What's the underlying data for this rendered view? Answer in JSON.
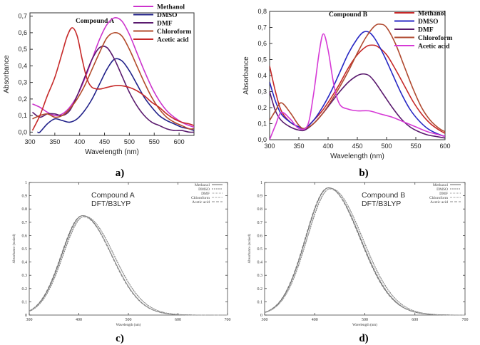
{
  "panels": {
    "a": {
      "label": "a)"
    },
    "b": {
      "label": "b)"
    },
    "c": {
      "label": "c)"
    },
    "d": {
      "label": "d)"
    }
  },
  "chart_data": [
    {
      "id": "a",
      "type": "line",
      "title": "Compound A",
      "xlabel": "Wavelength (nm)",
      "ylabel": "Absorbance",
      "xlim": [
        300,
        630
      ],
      "ylim": [
        -0.02,
        0.72
      ],
      "xticks": [
        300,
        350,
        400,
        450,
        500,
        550,
        600
      ],
      "yticks": [
        0.0,
        0.1,
        0.2,
        0.3,
        0.4,
        0.5,
        0.6,
        0.7
      ],
      "xtick_labels": [
        "300",
        "350",
        "400",
        "450",
        "500",
        "550",
        "600"
      ],
      "ytick_labels": [
        "0,0",
        "0,1",
        "0,2",
        "0,3",
        "0,4",
        "0,5",
        "0,6",
        "0,7"
      ],
      "legend_position": "top-right",
      "colors": {
        "Methanol": "#cc33cc",
        "DMSO": "#22228a",
        "DMF": "#5a1a6e",
        "Chloroform": "#b24a2a",
        "Acetic acid": "#c62828"
      },
      "series": [
        {
          "name": "Methanol",
          "x": [
            305,
            320,
            335,
            350,
            365,
            380,
            395,
            410,
            425,
            440,
            455,
            470,
            485,
            500,
            515,
            530,
            545,
            560,
            575,
            590,
            605,
            620,
            630
          ],
          "y": [
            0.17,
            0.15,
            0.12,
            0.1,
            0.11,
            0.15,
            0.22,
            0.32,
            0.44,
            0.56,
            0.65,
            0.69,
            0.67,
            0.59,
            0.48,
            0.37,
            0.27,
            0.19,
            0.13,
            0.09,
            0.06,
            0.04,
            0.03
          ]
        },
        {
          "name": "DMSO",
          "x": [
            315,
            320,
            335,
            350,
            365,
            380,
            395,
            410,
            425,
            440,
            455,
            470,
            485,
            500,
            515,
            530,
            545,
            560,
            575,
            590,
            605,
            620,
            630
          ],
          "y": [
            0.0,
            0.0,
            0.05,
            0.08,
            0.07,
            0.06,
            0.08,
            0.13,
            0.2,
            0.29,
            0.38,
            0.44,
            0.43,
            0.37,
            0.29,
            0.21,
            0.15,
            0.1,
            0.07,
            0.05,
            0.03,
            0.02,
            0.01
          ]
        },
        {
          "name": "DMF",
          "x": [
            305,
            320,
            335,
            350,
            365,
            380,
            395,
            410,
            425,
            440,
            455,
            470,
            485,
            500,
            515,
            530,
            545,
            560,
            575,
            590,
            605,
            620,
            630
          ],
          "y": [
            0.12,
            0.09,
            0.11,
            0.11,
            0.1,
            0.13,
            0.22,
            0.33,
            0.44,
            0.51,
            0.51,
            0.44,
            0.34,
            0.24,
            0.16,
            0.1,
            0.06,
            0.04,
            0.02,
            0.01,
            0.01,
            0.0,
            0.0
          ]
        },
        {
          "name": "Chloroform",
          "x": [
            305,
            320,
            335,
            350,
            365,
            380,
            395,
            410,
            425,
            440,
            455,
            470,
            485,
            500,
            515,
            530,
            545,
            560,
            575,
            590,
            605,
            620,
            630
          ],
          "y": [
            0.08,
            0.1,
            0.11,
            0.09,
            0.1,
            0.14,
            0.2,
            0.28,
            0.38,
            0.48,
            0.57,
            0.6,
            0.58,
            0.5,
            0.4,
            0.3,
            0.21,
            0.14,
            0.09,
            0.06,
            0.04,
            0.02,
            0.02
          ]
        },
        {
          "name": "Acetic acid",
          "x": [
            305,
            320,
            335,
            350,
            365,
            375,
            385,
            395,
            405,
            415,
            425,
            440,
            455,
            470,
            485,
            500,
            515,
            530,
            545,
            560,
            575,
            590,
            605,
            620,
            630
          ],
          "y": [
            0.01,
            0.1,
            0.22,
            0.33,
            0.48,
            0.58,
            0.63,
            0.58,
            0.44,
            0.32,
            0.27,
            0.26,
            0.27,
            0.28,
            0.28,
            0.27,
            0.25,
            0.22,
            0.18,
            0.15,
            0.11,
            0.08,
            0.06,
            0.05,
            0.04
          ]
        }
      ]
    },
    {
      "id": "b",
      "type": "line",
      "title": "Compound B",
      "xlabel": "Wavelength (nm)",
      "ylabel": "Absorbance",
      "xlim": [
        300,
        600
      ],
      "ylim": [
        0.0,
        0.8
      ],
      "xticks": [
        300,
        350,
        400,
        450,
        500,
        550,
        600
      ],
      "yticks": [
        0.0,
        0.1,
        0.2,
        0.3,
        0.4,
        0.5,
        0.6,
        0.7,
        0.8
      ],
      "xtick_labels": [
        "300",
        "350",
        "400",
        "450",
        "500",
        "550",
        "600"
      ],
      "ytick_labels": [
        "0,0",
        "0,1",
        "0,2",
        "0,3",
        "0,4",
        "0,5",
        "0,6",
        "0,7",
        "0,8"
      ],
      "legend_position": "top-right",
      "colors": {
        "Methanol": "#c62828",
        "DMSO": "#2727c4",
        "DMF": "#5a1a6e",
        "Chloroform": "#b04a30",
        "Acetic acid": "#d63ad6"
      },
      "series": [
        {
          "name": "Methanol",
          "x": [
            300,
            310,
            320,
            335,
            350,
            360,
            375,
            390,
            405,
            420,
            435,
            450,
            465,
            475,
            485,
            500,
            515,
            530,
            545,
            560,
            575,
            590,
            600
          ],
          "y": [
            0.46,
            0.3,
            0.18,
            0.11,
            0.08,
            0.07,
            0.12,
            0.18,
            0.26,
            0.35,
            0.45,
            0.53,
            0.58,
            0.59,
            0.58,
            0.53,
            0.44,
            0.34,
            0.24,
            0.16,
            0.1,
            0.06,
            0.04
          ]
        },
        {
          "name": "DMSO",
          "x": [
            300,
            310,
            320,
            335,
            350,
            360,
            375,
            390,
            405,
            420,
            435,
            450,
            460,
            470,
            480,
            495,
            510,
            525,
            540,
            555,
            570,
            585,
            600
          ],
          "y": [
            0.36,
            0.24,
            0.16,
            0.11,
            0.08,
            0.07,
            0.12,
            0.2,
            0.3,
            0.42,
            0.54,
            0.63,
            0.67,
            0.67,
            0.63,
            0.53,
            0.41,
            0.29,
            0.19,
            0.12,
            0.07,
            0.04,
            0.02
          ]
        },
        {
          "name": "DMF",
          "x": [
            300,
            310,
            320,
            335,
            350,
            360,
            375,
            390,
            405,
            420,
            435,
            450,
            460,
            470,
            480,
            495,
            510,
            525,
            540,
            555,
            570,
            585,
            600
          ],
          "y": [
            0.3,
            0.18,
            0.12,
            0.08,
            0.06,
            0.06,
            0.1,
            0.16,
            0.23,
            0.3,
            0.36,
            0.4,
            0.41,
            0.4,
            0.36,
            0.28,
            0.2,
            0.13,
            0.08,
            0.05,
            0.03,
            0.02,
            0.01
          ]
        },
        {
          "name": "Chloroform",
          "x": [
            300,
            310,
            320,
            335,
            350,
            360,
            375,
            390,
            405,
            420,
            435,
            450,
            465,
            480,
            490,
            500,
            515,
            530,
            545,
            560,
            575,
            590,
            600
          ],
          "y": [
            0.12,
            0.18,
            0.23,
            0.17,
            0.09,
            0.07,
            0.1,
            0.16,
            0.24,
            0.33,
            0.43,
            0.54,
            0.64,
            0.71,
            0.72,
            0.7,
            0.6,
            0.46,
            0.32,
            0.2,
            0.12,
            0.07,
            0.05
          ]
        },
        {
          "name": "Acetic acid",
          "x": [
            300,
            310,
            320,
            335,
            350,
            365,
            375,
            385,
            392,
            400,
            410,
            420,
            435,
            450,
            470,
            490,
            510,
            530,
            550,
            570,
            590,
            600
          ],
          "y": [
            0.0,
            0.09,
            0.17,
            0.13,
            0.07,
            0.09,
            0.28,
            0.55,
            0.66,
            0.56,
            0.34,
            0.22,
            0.19,
            0.18,
            0.18,
            0.16,
            0.14,
            0.11,
            0.08,
            0.05,
            0.03,
            0.02
          ]
        }
      ]
    },
    {
      "id": "c",
      "type": "line",
      "title": "",
      "annotation": [
        "Compound A",
        "DFT/B3LYP"
      ],
      "xlabel": "Wavelength (nm)",
      "ylabel": "Absorbance (scaled)",
      "xlim": [
        300,
        700
      ],
      "ylim": [
        0,
        1
      ],
      "xticks": [
        300,
        400,
        500,
        600,
        700
      ],
      "yticks": [
        0,
        0.1,
        0.2,
        0.3,
        0.4,
        0.5,
        0.6,
        0.7,
        0.8,
        0.9,
        1
      ],
      "xtick_labels": [
        "300",
        "400",
        "500",
        "600",
        "700"
      ],
      "ytick_labels": [
        "0",
        "0.1",
        "0.2",
        "0.3",
        "0.4",
        "0.5",
        "0.6",
        "0.7",
        "0.8",
        "0.9",
        "1"
      ],
      "legend_position": "top-right",
      "series": [
        {
          "name": "Methanol",
          "peak_x": 408,
          "peak_y": 0.75,
          "width": 52
        },
        {
          "name": "DMSO",
          "peak_x": 412,
          "peak_y": 0.745,
          "width": 53
        },
        {
          "name": "DMF",
          "peak_x": 411,
          "peak_y": 0.745,
          "width": 53
        },
        {
          "name": "Chloroform",
          "peak_x": 409,
          "peak_y": 0.74,
          "width": 52
        },
        {
          "name": "Acetic acid",
          "peak_x": 407,
          "peak_y": 0.75,
          "width": 52
        }
      ]
    },
    {
      "id": "d",
      "type": "line",
      "title": "",
      "annotation": [
        "Compound B",
        "DFT/B3LYP"
      ],
      "xlabel": "Wavelength (nm)",
      "ylabel": "Absorbance (scaled)",
      "xlim": [
        300,
        700
      ],
      "ylim": [
        0,
        1
      ],
      "xticks": [
        300,
        400,
        500,
        600,
        700
      ],
      "yticks": [
        0,
        0.1,
        0.2,
        0.3,
        0.4,
        0.5,
        0.6,
        0.7,
        0.8,
        0.9,
        1
      ],
      "xtick_labels": [
        "300",
        "400",
        "500",
        "600",
        "700"
      ],
      "ytick_labels": [
        "0",
        "0.1",
        "0.2",
        "0.3",
        "0.4",
        "0.5",
        "0.6",
        "0.7",
        "0.8",
        "0.9",
        "1"
      ],
      "legend_position": "top-right",
      "series": [
        {
          "name": "Methanol",
          "peak_x": 428,
          "peak_y": 0.96,
          "width": 56
        },
        {
          "name": "DMSO",
          "peak_x": 432,
          "peak_y": 0.955,
          "width": 57
        },
        {
          "name": "DMF",
          "peak_x": 431,
          "peak_y": 0.955,
          "width": 57
        },
        {
          "name": "Chloroform",
          "peak_x": 430,
          "peak_y": 0.95,
          "width": 56
        },
        {
          "name": "Acetic acid",
          "peak_x": 427,
          "peak_y": 0.96,
          "width": 56
        }
      ]
    }
  ]
}
